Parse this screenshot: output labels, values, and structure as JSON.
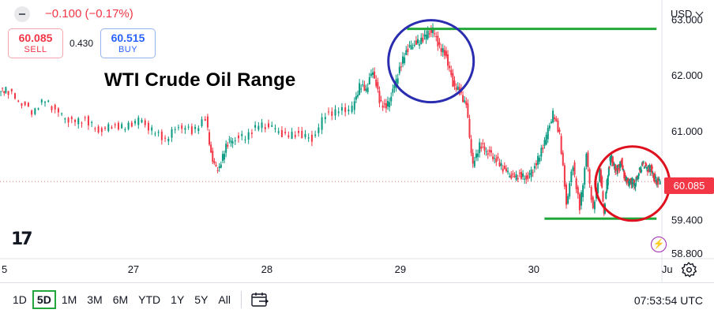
{
  "header": {
    "change_text": "−0.100 (−0.17%)",
    "sell_price": "60.085",
    "sell_label": "SELL",
    "spread": "0.430",
    "buy_price": "60.515",
    "buy_label": "BUY"
  },
  "annotation": {
    "title": "WTI Crude Oil Range",
    "upper_line_level": 62.83,
    "lower_line_level": 59.42
  },
  "currency_label": "USD",
  "last_price_label": "60.085",
  "timeframes": [
    "1D",
    "5D",
    "1M",
    "3M",
    "6M",
    "YTD",
    "1Y",
    "5Y",
    "All"
  ],
  "active_timeframe": "5D",
  "clock": "07:53:54 UTC",
  "icons": {
    "logo": "tradingview-logo",
    "compare": "compare-range-icon",
    "alert": "lightning-bolt-icon",
    "settings": "gear-icon",
    "minus": "minus-icon"
  },
  "colors": {
    "up": "#089981",
    "down": "#f23645",
    "annotation_lines": "#22a83a",
    "circle_top": "#2b2db0",
    "circle_bottom": "#e0111f"
  },
  "chart_data": {
    "type": "line",
    "title": "WTI Crude Oil Range",
    "x_tick_labels": [
      "5",
      "27",
      "28",
      "29",
      "30",
      "Ju"
    ],
    "x_ticks": [
      0,
      1,
      2,
      3,
      4,
      5
    ],
    "y_tick_labels": [
      "63.000",
      "62.000",
      "61.000",
      "59.400",
      "58.800"
    ],
    "y_ticks": [
      63.0,
      62.0,
      61.0,
      59.4,
      58.8
    ],
    "ylim": [
      58.7,
      63.35
    ],
    "xlim": [
      0,
      4.96
    ],
    "grid": false,
    "last_price": 60.085,
    "series": [
      {
        "x": [
          0.0,
          0.05,
          0.15,
          0.25,
          0.35,
          0.45,
          0.55,
          0.65,
          0.75,
          0.85,
          0.95,
          1.05,
          1.15,
          1.25,
          1.35,
          1.45,
          1.55,
          1.6,
          1.65,
          1.7,
          1.75,
          1.85,
          1.95,
          2.05,
          2.15,
          2.25,
          2.35,
          2.45,
          2.55,
          2.65,
          2.7,
          2.75,
          2.8,
          2.85,
          2.9,
          2.95,
          3.0,
          3.05,
          3.1,
          3.15,
          3.2,
          3.25,
          3.3,
          3.35,
          3.4,
          3.45,
          3.5,
          3.55,
          3.6,
          3.65,
          3.7,
          3.75,
          3.8,
          3.85,
          3.9,
          3.95,
          4.0,
          4.05,
          4.1,
          4.15,
          4.2,
          4.25,
          4.3,
          4.35,
          4.4,
          4.45,
          4.5,
          4.53,
          4.56,
          4.58,
          4.6,
          4.62,
          4.64,
          4.66,
          4.68,
          4.7,
          4.72,
          4.74,
          4.76,
          4.78,
          4.8,
          4.82,
          4.84,
          4.86,
          4.88,
          4.9,
          4.92,
          4.95
        ],
        "y": [
          61.7,
          61.75,
          61.55,
          61.35,
          61.55,
          61.3,
          61.15,
          61.2,
          61.0,
          61.1,
          61.05,
          61.2,
          61.0,
          60.85,
          61.1,
          61.0,
          61.2,
          60.4,
          60.3,
          60.75,
          60.85,
          60.9,
          61.1,
          61.05,
          60.9,
          60.95,
          60.85,
          61.3,
          61.35,
          61.4,
          61.8,
          61.75,
          62.1,
          61.55,
          61.4,
          61.7,
          62.1,
          62.45,
          62.55,
          62.6,
          62.72,
          62.8,
          62.5,
          62.35,
          61.85,
          61.7,
          61.45,
          60.35,
          60.75,
          60.65,
          60.55,
          60.4,
          60.25,
          60.15,
          60.2,
          60.15,
          60.3,
          60.55,
          60.9,
          61.3,
          60.95,
          59.7,
          60.4,
          59.6,
          60.55,
          59.55,
          60.3,
          59.55,
          60.25,
          60.55,
          60.4,
          60.3,
          60.35,
          60.45,
          60.2,
          60.1,
          60.085,
          60.1,
          60.05,
          60.2,
          60.3,
          60.4,
          60.35,
          60.3,
          60.35,
          60.2,
          60.1,
          60.085
        ]
      }
    ]
  }
}
